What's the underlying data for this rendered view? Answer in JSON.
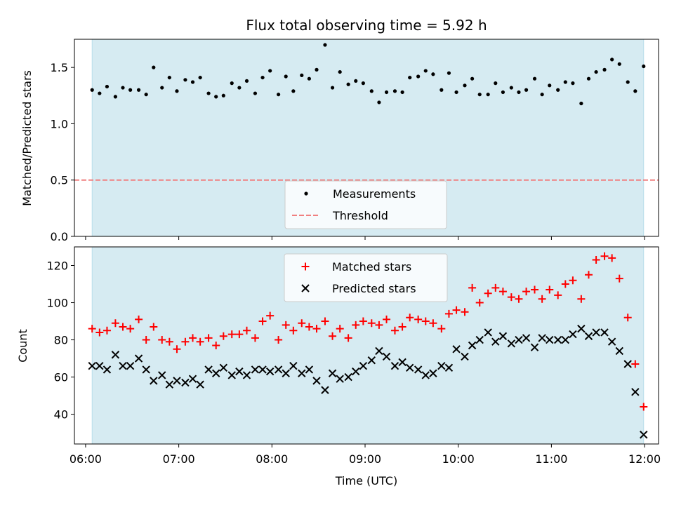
{
  "chart_data": {
    "title": "Flux total observing time = 5.92 h",
    "xlabel": "Time (UTC)",
    "x_ticks": [
      "06:00",
      "07:00",
      "08:00",
      "09:00",
      "10:00",
      "11:00",
      "12:00"
    ],
    "x_unit": "hours (UTC)",
    "xlim": [
      5.88,
      12.15
    ],
    "observing_window": [
      6.07,
      11.99
    ],
    "window_color": "#add8e6",
    "panels": [
      {
        "type": "scatter",
        "ylabel": "Matched/Predicted stars",
        "ylim": [
          0,
          1.75
        ],
        "y_ticks": [
          "0.0",
          "0.5",
          "1.0",
          "1.5"
        ],
        "y_tick_values": [
          0,
          0.5,
          1.0,
          1.5
        ],
        "legend_position": "lower-center",
        "threshold": {
          "name": "Threshold",
          "value": 0.5,
          "color": "#f08080"
        },
        "series": [
          {
            "name": "Measurements",
            "color": "#000000",
            "x": [
              6.07,
              6.15,
              6.23,
              6.32,
              6.4,
              6.48,
              6.57,
              6.65,
              6.73,
              6.82,
              6.9,
              6.98,
              7.07,
              7.15,
              7.23,
              7.32,
              7.4,
              7.48,
              7.57,
              7.65,
              7.73,
              7.82,
              7.9,
              7.98,
              8.07,
              8.15,
              8.23,
              8.32,
              8.4,
              8.48,
              8.57,
              8.65,
              8.73,
              8.82,
              8.9,
              8.98,
              9.07,
              9.15,
              9.23,
              9.32,
              9.4,
              9.48,
              9.57,
              9.65,
              9.73,
              9.82,
              9.9,
              9.98,
              10.07,
              10.15,
              10.23,
              10.32,
              10.4,
              10.48,
              10.57,
              10.65,
              10.73,
              10.82,
              10.9,
              10.98,
              11.07,
              11.15,
              11.23,
              11.32,
              11.4,
              11.48,
              11.57,
              11.65,
              11.73,
              11.82,
              11.9,
              11.99
            ],
            "y": [
              1.3,
              1.27,
              1.33,
              1.24,
              1.32,
              1.3,
              1.3,
              1.26,
              1.5,
              1.32,
              1.41,
              1.29,
              1.39,
              1.37,
              1.41,
              1.27,
              1.24,
              1.25,
              1.36,
              1.32,
              1.38,
              1.27,
              1.41,
              1.47,
              1.26,
              1.42,
              1.29,
              1.43,
              1.4,
              1.48,
              1.7,
              1.32,
              1.46,
              1.35,
              1.38,
              1.36,
              1.29,
              1.19,
              1.28,
              1.29,
              1.28,
              1.41,
              1.42,
              1.47,
              1.44,
              1.3,
              1.45,
              1.28,
              1.34,
              1.4,
              1.26,
              1.26,
              1.36,
              1.28,
              1.32,
              1.28,
              1.3,
              1.4,
              1.26,
              1.34,
              1.3,
              1.37,
              1.36,
              1.18,
              1.4,
              1.46,
              1.48,
              1.57,
              1.53,
              1.37,
              1.29,
              1.51
            ]
          }
        ]
      },
      {
        "type": "scatter",
        "ylabel": "Count",
        "ylim": [
          24,
          130
        ],
        "y_ticks": [
          "40",
          "60",
          "80",
          "100",
          "120"
        ],
        "y_tick_values": [
          40,
          60,
          80,
          100,
          120
        ],
        "legend_position": "upper-center",
        "series": [
          {
            "name": "Matched stars",
            "marker": "plus",
            "color": "#ff0000",
            "x": [
              6.07,
              6.15,
              6.23,
              6.32,
              6.4,
              6.48,
              6.57,
              6.65,
              6.73,
              6.82,
              6.9,
              6.98,
              7.07,
              7.15,
              7.23,
              7.32,
              7.4,
              7.48,
              7.57,
              7.65,
              7.73,
              7.82,
              7.9,
              7.98,
              8.07,
              8.15,
              8.23,
              8.32,
              8.4,
              8.48,
              8.57,
              8.65,
              8.73,
              8.82,
              8.9,
              8.98,
              9.07,
              9.15,
              9.23,
              9.32,
              9.4,
              9.48,
              9.57,
              9.65,
              9.73,
              9.82,
              9.9,
              9.98,
              10.07,
              10.15,
              10.23,
              10.32,
              10.4,
              10.48,
              10.57,
              10.65,
              10.73,
              10.82,
              10.9,
              10.98,
              11.07,
              11.15,
              11.23,
              11.32,
              11.4,
              11.48,
              11.57,
              11.65,
              11.73,
              11.82,
              11.9,
              11.99
            ],
            "y": [
              86,
              84,
              85,
              89,
              87,
              86,
              91,
              80,
              87,
              80,
              79,
              75,
              79,
              81,
              79,
              81,
              77,
              82,
              83,
              83,
              85,
              81,
              90,
              93,
              80,
              88,
              85,
              89,
              87,
              86,
              90,
              82,
              86,
              81,
              88,
              90,
              89,
              88,
              91,
              85,
              87,
              92,
              91,
              90,
              89,
              86,
              94,
              96,
              95,
              108,
              100,
              105,
              108,
              106,
              103,
              102,
              106,
              107,
              102,
              107,
              104,
              110,
              112,
              102,
              115,
              123,
              125,
              124,
              113,
              92,
              67,
              44
            ]
          },
          {
            "name": "Predicted stars",
            "marker": "x",
            "color": "#000000",
            "x": [
              6.07,
              6.15,
              6.23,
              6.32,
              6.4,
              6.48,
              6.57,
              6.65,
              6.73,
              6.82,
              6.9,
              6.98,
              7.07,
              7.15,
              7.23,
              7.32,
              7.4,
              7.48,
              7.57,
              7.65,
              7.73,
              7.82,
              7.9,
              7.98,
              8.07,
              8.15,
              8.23,
              8.32,
              8.4,
              8.48,
              8.57,
              8.65,
              8.73,
              8.82,
              8.9,
              8.98,
              9.07,
              9.15,
              9.23,
              9.32,
              9.4,
              9.48,
              9.57,
              9.65,
              9.73,
              9.82,
              9.9,
              9.98,
              10.07,
              10.15,
              10.23,
              10.32,
              10.4,
              10.48,
              10.57,
              10.65,
              10.73,
              10.82,
              10.9,
              10.98,
              11.07,
              11.15,
              11.23,
              11.32,
              11.4,
              11.48,
              11.57,
              11.65,
              11.73,
              11.82,
              11.9,
              11.99
            ],
            "y": [
              66,
              66,
              64,
              72,
              66,
              66,
              70,
              64,
              58,
              61,
              56,
              58,
              57,
              59,
              56,
              64,
              62,
              65,
              61,
              63,
              61,
              64,
              64,
              63,
              64,
              62,
              66,
              62,
              64,
              58,
              53,
              62,
              59,
              60,
              63,
              66,
              69,
              74,
              71,
              66,
              68,
              65,
              64,
              61,
              62,
              66,
              65,
              75,
              71,
              77,
              80,
              84,
              79,
              82,
              78,
              80,
              81,
              76,
              81,
              80,
              80,
              80,
              83,
              86,
              82,
              84,
              84,
              79,
              74,
              67,
              52,
              29
            ]
          }
        ]
      }
    ]
  }
}
